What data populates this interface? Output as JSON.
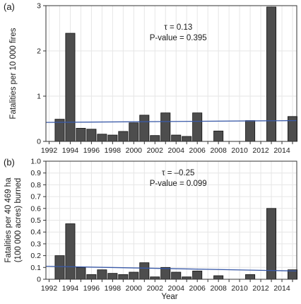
{
  "chart_data": [
    {
      "type": "bar",
      "panel_label": "(a)",
      "ylabel": "Fatalities per 10 000 fires",
      "ylim": [
        0,
        3
      ],
      "yticks": [
        "0",
        "1",
        "2",
        "3"
      ],
      "yticks_values": [
        0,
        1,
        2,
        3
      ],
      "xlim": [
        1991.7,
        2015.4
      ],
      "x": [
        1993,
        1994,
        1995,
        1996,
        1997,
        1998,
        1999,
        2000,
        2001,
        2002,
        2003,
        2004,
        2005,
        2006,
        2008,
        2011,
        2013,
        2015
      ],
      "values": [
        0.49,
        2.39,
        0.29,
        0.27,
        0.16,
        0.14,
        0.22,
        0.41,
        0.58,
        0.13,
        0.63,
        0.14,
        0.11,
        0.63,
        0.23,
        0.46,
        2.97,
        0.55
      ],
      "trend": {
        "x": [
          1991.7,
          2015.4
        ],
        "y": [
          0.42,
          0.46
        ]
      },
      "annotation": [
        "τ = 0.13",
        "P-value = 0.395"
      ],
      "grid": true,
      "colors": {
        "bar": "#4d4d4d",
        "trend": "#3a5aa8"
      }
    },
    {
      "type": "bar",
      "panel_label": "(b)",
      "ylabel": [
        "Fatalities per 40 469 ha",
        "(100 000 acres) burned"
      ],
      "ylim": [
        0,
        1.0
      ],
      "yticks": [
        "0",
        "0.1",
        "0.2",
        "0.3",
        "0.4",
        "0.5",
        "0.6",
        "0.7",
        "0.8",
        "0.9",
        "1.0"
      ],
      "yticks_values": [
        0,
        0.1,
        0.2,
        0.3,
        0.4,
        0.5,
        0.6,
        0.7,
        0.8,
        0.9,
        1.0
      ],
      "xlim": [
        1991.7,
        2015.4
      ],
      "x": [
        1993,
        1994,
        1995,
        1996,
        1997,
        1998,
        1999,
        2000,
        2001,
        2002,
        2003,
        2004,
        2005,
        2006,
        2008,
        2011,
        2013,
        2015
      ],
      "values": [
        0.2,
        0.47,
        0.1,
        0.04,
        0.08,
        0.05,
        0.04,
        0.06,
        0.14,
        0.02,
        0.1,
        0.06,
        0.02,
        0.07,
        0.03,
        0.04,
        0.6,
        0.08
      ],
      "trend": {
        "x": [
          1991.7,
          2015.4
        ],
        "y": [
          0.11,
          0.07
        ]
      },
      "annotation": [
        "τ = –0.25",
        "P-value = 0.099"
      ],
      "grid": true,
      "colors": {
        "bar": "#4d4d4d",
        "trend": "#3a5aa8"
      }
    }
  ],
  "x_axis": {
    "title": "Year",
    "ticks": [
      "1992",
      "1994",
      "1996",
      "1998",
      "2000",
      "2002",
      "2004",
      "2006",
      "2008",
      "2010",
      "2012",
      "2014"
    ],
    "tick_values": [
      1992,
      1994,
      1996,
      1998,
      2000,
      2002,
      2004,
      2006,
      2008,
      2010,
      2012,
      2014
    ]
  }
}
